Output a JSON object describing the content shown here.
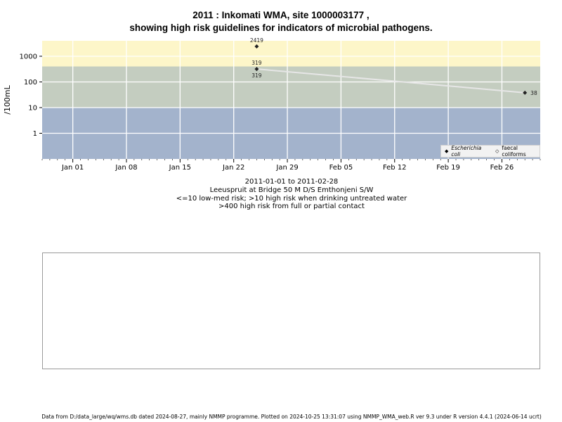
{
  "header": {
    "title_line1": "2011 : Inkomati WMA, site 1000003177 ,",
    "title_line2": "showing high risk guidelines for indicators of microbial pathogens."
  },
  "caption": {
    "line1": "2011-01-01 to 2011-02-28",
    "line2": "Leeuspruit at Bridge 50 M D/S Emthonjeni S/W",
    "line3": "<=10 low-med risk; >10 high risk when drinking untreated water",
    "line4": ">400 high risk from full or partial contact"
  },
  "footer": {
    "text": "Data from D:/data_large/wq/wms.db dated 2024-08-27, mainly NMMP programme. Plotted on 2024-10-25 13:31:07 using NMMP_WMA_web.R ver 9.3 under R version 4.4.1 (2024-06-14 ucrt)"
  },
  "legend": {
    "items": [
      {
        "label": "Escherichia coli",
        "symbol": "◆"
      },
      {
        "label": "faecal coliforms",
        "symbol": "◇"
      }
    ]
  },
  "colors": {
    "zone_high_contact": "#fdf6c9",
    "zone_high_drink": "#c4cdc0",
    "zone_low": "#a3b3cc",
    "grid": "#ffffff",
    "line": "#e6e6e6",
    "points": "#222222"
  },
  "chart_data": {
    "type": "scatter",
    "title": "2011 : Inkomati WMA, site 1000003177 , showing high risk guidelines for indicators of microbial pathogens.",
    "ylabel": "/100mL",
    "xlabel": "",
    "y_scale": "log",
    "y_ticks": [
      1,
      10,
      100,
      1000
    ],
    "y_tick_labels": [
      "1",
      "10",
      "100",
      "1000"
    ],
    "ylim": [
      0.1,
      4000
    ],
    "xlim": [
      "2010-12-28",
      "2011-03-03"
    ],
    "x_ticks": [
      "2011-01-01",
      "2011-01-08",
      "2011-01-15",
      "2011-01-22",
      "2011-01-29",
      "2011-02-05",
      "2011-02-12",
      "2011-02-19",
      "2011-02-26"
    ],
    "x_tick_labels": [
      "Jan 01",
      "Jan 08",
      "Jan 15",
      "Jan 22",
      "Jan 29",
      "Feb 05",
      "Feb 12",
      "Feb 19",
      "Feb 26"
    ],
    "risk_bands": [
      {
        "from": 0.1,
        "to": 10,
        "label": "<=10 low-med risk"
      },
      {
        "from": 10,
        "to": 400,
        "label": ">10 high risk when drinking untreated water"
      },
      {
        "from": 400,
        "to": 4000,
        "label": ">400 high risk from full or partial contact"
      }
    ],
    "series": [
      {
        "name": "Escherichia coli",
        "points": [
          {
            "x": "2011-01-25",
            "y": 2419,
            "label": "2419"
          },
          {
            "x": "2011-01-25",
            "y": 319,
            "label": "319"
          },
          {
            "x": "2011-03-01",
            "y": 38,
            "label": "38"
          }
        ]
      },
      {
        "name": "faecal coliforms",
        "points": [
          {
            "x": "2011-01-25",
            "y": 319,
            "label": "319"
          }
        ]
      }
    ],
    "line": {
      "from": {
        "x": "2011-01-25",
        "y": 319
      },
      "to": {
        "x": "2011-03-01",
        "y": 38
      }
    },
    "grid": true,
    "legend_position": "bottom-right"
  }
}
